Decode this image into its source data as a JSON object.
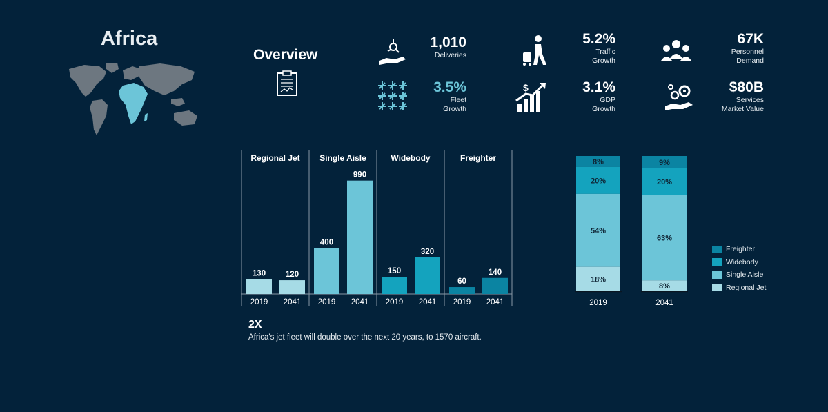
{
  "region": "Africa",
  "overview_title": "Overview",
  "stats": [
    {
      "value": "1,010",
      "label_lines": [
        "Deliveries"
      ],
      "icon": "delivery-hand-icon",
      "accent": false
    },
    {
      "value": "3.5%",
      "label_lines": [
        "Fleet",
        "Growth"
      ],
      "icon": "airplane-grid-icon",
      "accent": true
    },
    {
      "value": "5.2%",
      "label_lines": [
        "Traffic",
        "Growth"
      ],
      "icon": "traveler-icon",
      "accent": false
    },
    {
      "value": "3.1%",
      "label_lines": [
        "GDP",
        "Growth"
      ],
      "icon": "money-growth-icon",
      "accent": false
    },
    {
      "value": "67K",
      "label_lines": [
        "Personnel",
        "Demand"
      ],
      "icon": "personnel-icon",
      "accent": false
    },
    {
      "value": "$80B",
      "label_lines": [
        "Services",
        "Market Value"
      ],
      "icon": "services-icon",
      "accent": false
    }
  ],
  "colors": {
    "background": "#03223a",
    "regional_jet": "#a6dbe6",
    "single_aisle": "#6cc5d8",
    "widebody": "#14a3be",
    "freighter": "#0b84a2",
    "accent_text": "#6cc5d8"
  },
  "chart_data": [
    {
      "type": "bar",
      "groups": [
        "Regional Jet",
        "Single Aisle",
        "Widebody",
        "Freighter"
      ],
      "x": [
        "2019",
        "2041"
      ],
      "series": [
        {
          "name": "Regional Jet",
          "values": [
            130,
            120
          ]
        },
        {
          "name": "Single Aisle",
          "values": [
            400,
            990
          ]
        },
        {
          "name": "Widebody",
          "values": [
            150,
            320
          ]
        },
        {
          "name": "Freighter",
          "values": [
            60,
            140
          ]
        }
      ],
      "ylim": [
        0,
        1000
      ],
      "grid": false
    },
    {
      "type": "bar",
      "stacked": true,
      "categories": [
        "2019",
        "2041"
      ],
      "series": [
        {
          "name": "Regional Jet",
          "values": [
            18,
            8
          ]
        },
        {
          "name": "Single Aisle",
          "values": [
            54,
            63
          ]
        },
        {
          "name": "Widebody",
          "values": [
            20,
            20
          ]
        },
        {
          "name": "Freighter",
          "values": [
            8,
            9
          ]
        }
      ],
      "value_suffix": "%",
      "legend": [
        "Freighter",
        "Widebody",
        "Single Aisle",
        "Regional Jet"
      ],
      "legend_position": "right"
    }
  ],
  "headline": "2X",
  "summary": "Africa's jet fleet will double over the next 20 years, to 1570 aircraft."
}
